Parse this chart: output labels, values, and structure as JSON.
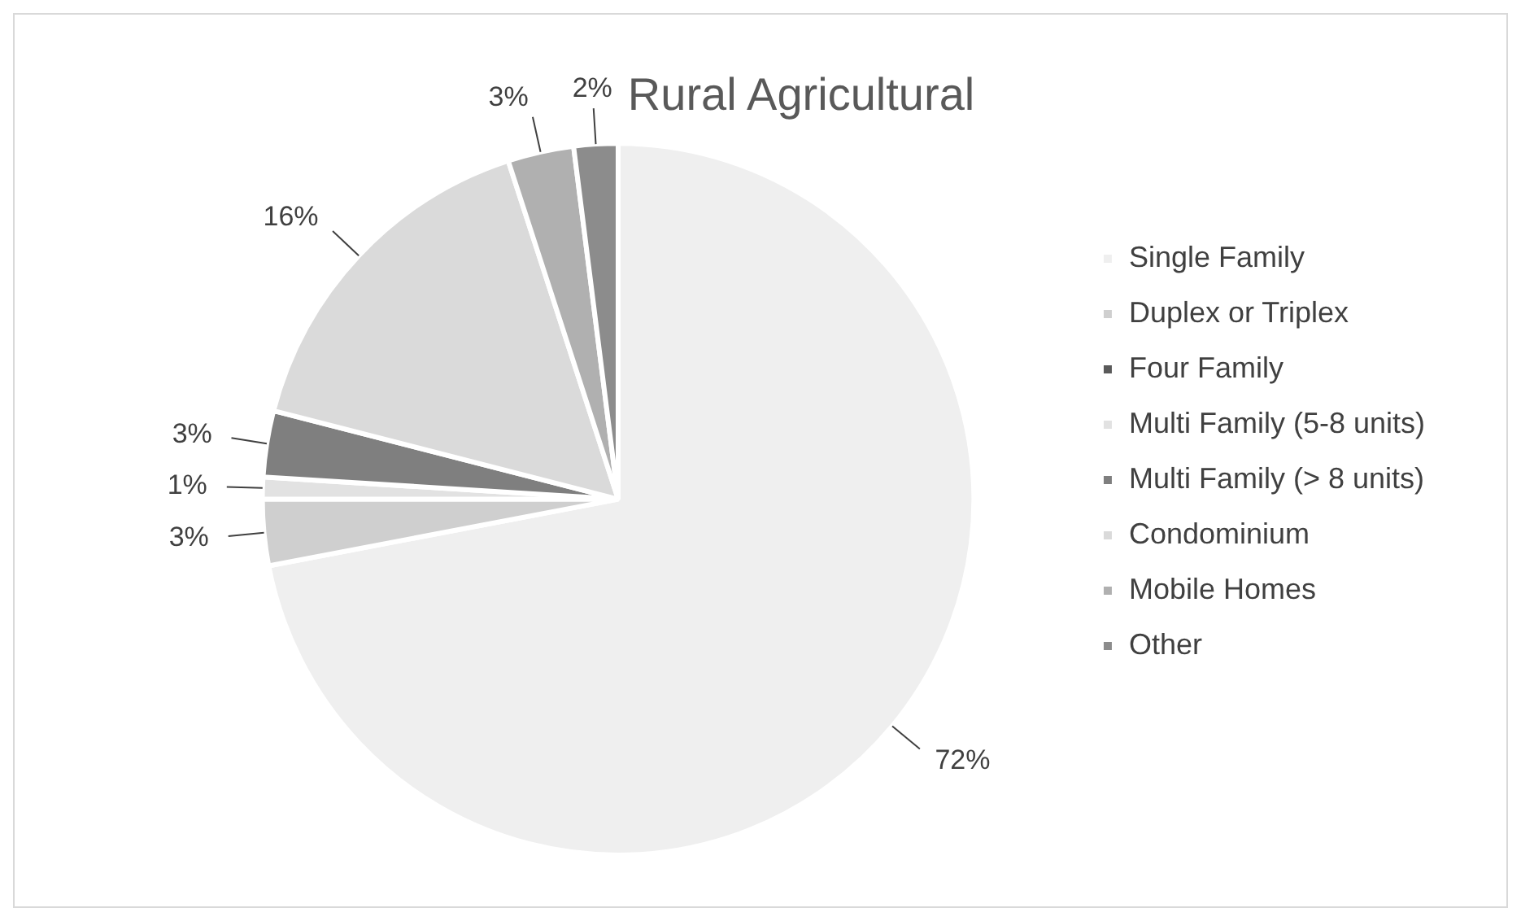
{
  "chart_data": {
    "type": "pie",
    "title": "Rural Agricultural",
    "categories": [
      "Single Family",
      "Duplex or Triplex",
      "Four Family",
      "Multi Family (5-8 units)",
      "Multi Family (> 8 units)",
      "Condominium",
      "Mobile Homes",
      "Other"
    ],
    "values": [
      72,
      3,
      0,
      1,
      3,
      16,
      3,
      2
    ],
    "value_labels": [
      "72%",
      "3%",
      null,
      "1%",
      "3%",
      "16%",
      "3%",
      "2%"
    ],
    "colors": [
      "#efefef",
      "#cfcfcf",
      "#5a5a5a",
      "#e2e2e2",
      "#7f7f7f",
      "#dadada",
      "#b0b0b0",
      "#8c8c8c"
    ],
    "legend": "right"
  }
}
